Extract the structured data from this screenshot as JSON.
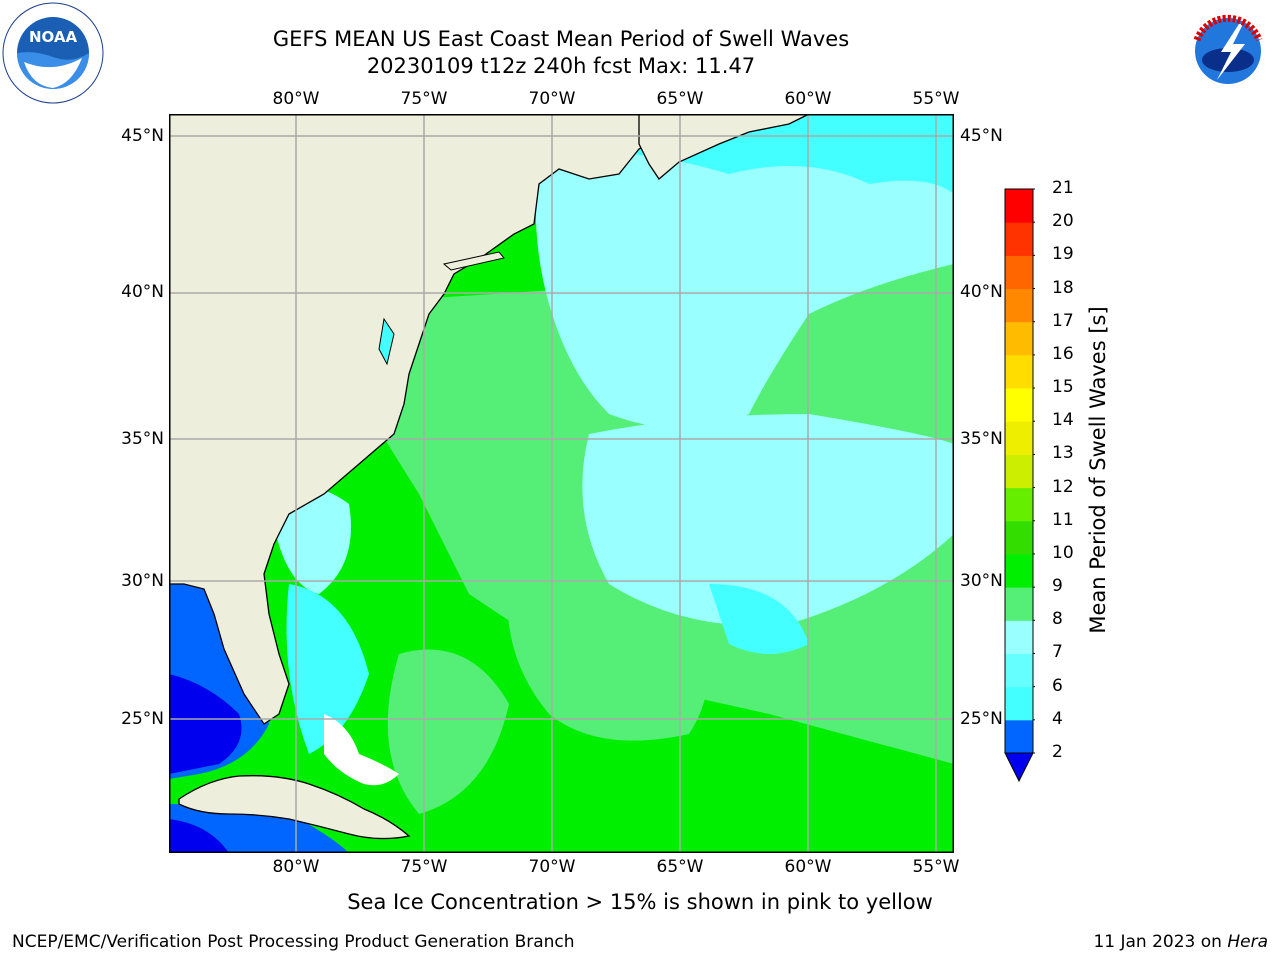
{
  "title_line1": "GEFS MEAN US East Coast Mean Period of Swell Waves",
  "title_line2": "20230109 t12z 240h fcst   Max: 11.47",
  "map": {
    "longitude_labels": [
      "80°W",
      "75°W",
      "70°W",
      "65°W",
      "60°W",
      "55°W"
    ],
    "latitude_labels": [
      "45°N",
      "40°N",
      "35°N",
      "30°N",
      "25°N"
    ],
    "colors": {
      "land": "#eeeedd",
      "ocean_light": "#99ffff",
      "ocean_cyan": "#44ffff",
      "ocean_green_light": "#55ee77",
      "ocean_green": "#00ee00",
      "deep_blue": "#0066ff",
      "dark_blue": "#0000ee",
      "grid": "#aaaaaa"
    }
  },
  "colorbar": {
    "title": "Mean Period of Swell Waves [s]",
    "tick_labels": [
      "2",
      "4",
      "6",
      "7",
      "8",
      "9",
      "10",
      "11",
      "12",
      "13",
      "14",
      "15",
      "16",
      "17",
      "18",
      "19",
      "20",
      "21"
    ],
    "colors": [
      "#0066ff",
      "#00ccff",
      "#44ffff",
      "#66ffff",
      "#99ffff",
      "#55ee77",
      "#00ee00",
      "#33dd00",
      "#66ee00",
      "#ccee00",
      "#eeee00",
      "#ffff00",
      "#ffdd00",
      "#ffbb00",
      "#ff8800",
      "#ff6600",
      "#ff3300",
      "#ff0000"
    ],
    "extend_color": "#0000ee"
  },
  "subtitle": "Sea Ice Concentration > 15% is shown in pink to yellow",
  "footer_left": "NCEP/EMC/Verification Post Processing Product Generation Branch",
  "footer_date": "11 Jan 2023 on ",
  "footer_machine": "Hera",
  "logos": {
    "left": "NOAA",
    "right": "NATIONAL WEATHER SERVICE"
  }
}
